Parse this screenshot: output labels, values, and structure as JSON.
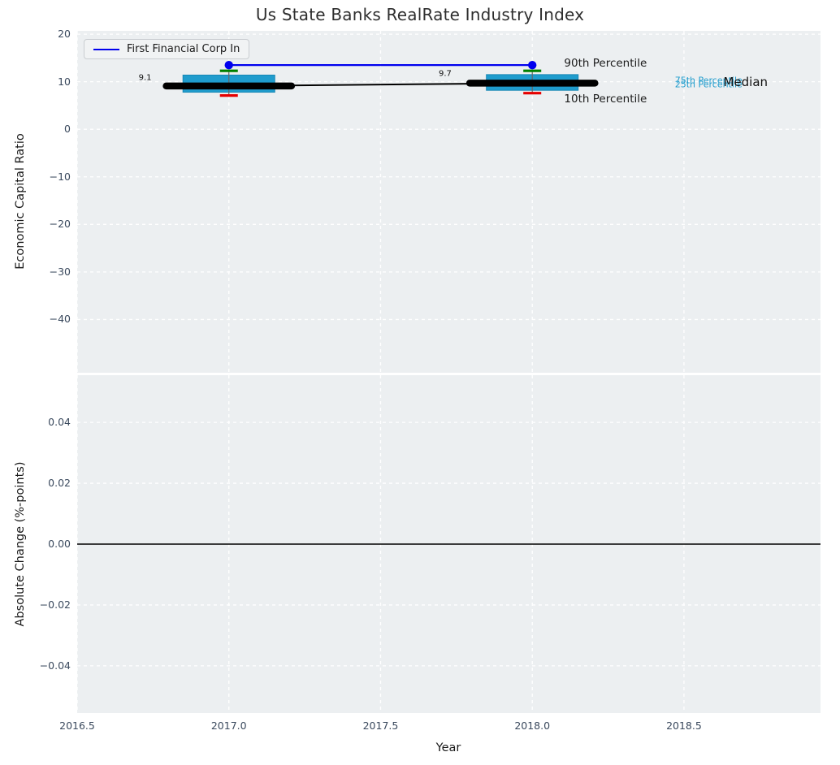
{
  "figure": {
    "title": "Us State Banks RealRate Industry Index",
    "background": "#ffffff",
    "axes_background": "#eceff1",
    "grid_color": "#ffffff",
    "tick_color": "#3b4a5e",
    "label_color": "#1a1a1a"
  },
  "chart_data": [
    {
      "type": "boxplot-timeseries",
      "title": "Us State Banks RealRate Industry Index",
      "xlabel": "Year",
      "ylabel": "Economic Capital Ratio",
      "xlim": [
        2016.5,
        2018.95
      ],
      "ylim": [
        -51.2,
        20.7
      ],
      "grid": "white dashed, on",
      "xticks": [
        2016.5,
        2017.0,
        2017.5,
        2018.0,
        2018.5
      ],
      "yticks": [
        20,
        10,
        0,
        -10,
        -20,
        -30,
        -40
      ],
      "ytick_labels": [
        "20",
        "10",
        "0",
        "−10",
        "−20",
        "−30",
        "−40"
      ],
      "legend": {
        "position": "upper left",
        "label": "First Financial Corp In",
        "line_color": "#0000ee"
      },
      "company_series": {
        "name": "First Financial Corp In",
        "color": "#0000ee",
        "marker": "circle",
        "x": [
          2017,
          2018
        ],
        "y": [
          13.5,
          13.5
        ]
      },
      "median_series": {
        "color": "#000000",
        "x": [
          2017,
          2018
        ],
        "y": [
          9.1,
          9.7
        ]
      },
      "boxes": [
        {
          "year": 2017,
          "p90": 12.3,
          "p75": 11.4,
          "median": 9.1,
          "p25": 7.8,
          "p10": 7.1,
          "label": "9.1",
          "label_x": 2016.745,
          "label_y": 10.8
        },
        {
          "year": 2018,
          "p90": 12.3,
          "p75": 11.5,
          "median": 9.7,
          "p25": 8.2,
          "p10": 7.6,
          "label": "9.7",
          "label_x": 2017.734,
          "label_y": 11.6
        }
      ],
      "box_style": {
        "box_fill": "#1f9ccd",
        "box_edge": "#1787b5",
        "cap_top_color": "#008000",
        "cap_bottom_color": "#e60000",
        "median_color": "#000000",
        "whisker_color": "#666666"
      },
      "annotations": [
        {
          "text": "90th Percentile",
          "x": 2018.105,
          "y": 13.8,
          "color": "#1a1a1a",
          "size": 13.5,
          "anchor": "start"
        },
        {
          "text": "10th Percentile",
          "x": 2018.105,
          "y": 6.3,
          "color": "#1a1a1a",
          "size": 13.5,
          "anchor": "start"
        },
        {
          "text": "75th Percentile",
          "x": 2018.47,
          "y": 10.3,
          "color": "#1f9ccd",
          "size": 11,
          "anchor": "start"
        },
        {
          "text": "25th Percentile",
          "x": 2018.47,
          "y": 9.4,
          "color": "#1f9ccd",
          "size": 11,
          "anchor": "start"
        },
        {
          "text": "Median",
          "x": 2018.63,
          "y": 10.0,
          "color": "#111111",
          "size": 15,
          "anchor": "start"
        }
      ]
    },
    {
      "type": "line",
      "xlabel": "Year",
      "ylabel": "Absolute Change (%-points)",
      "xlim": [
        2016.5,
        2018.95
      ],
      "ylim": [
        -0.0555,
        0.0555
      ],
      "grid": "white dashed, on",
      "xticks": [
        2016.5,
        2017.0,
        2017.5,
        2018.0,
        2018.5
      ],
      "xtick_labels": [
        "2016.5",
        "2017.0",
        "2017.5",
        "2018.0",
        "2018.5"
      ],
      "yticks": [
        0.04,
        0.02,
        0.0,
        -0.02,
        -0.04
      ],
      "ytick_labels": [
        "0.04",
        "0.02",
        "0.00",
        "−0.02",
        "−0.04"
      ],
      "zero_line": {
        "y": 0.0,
        "color": "#000000"
      },
      "series": []
    }
  ]
}
